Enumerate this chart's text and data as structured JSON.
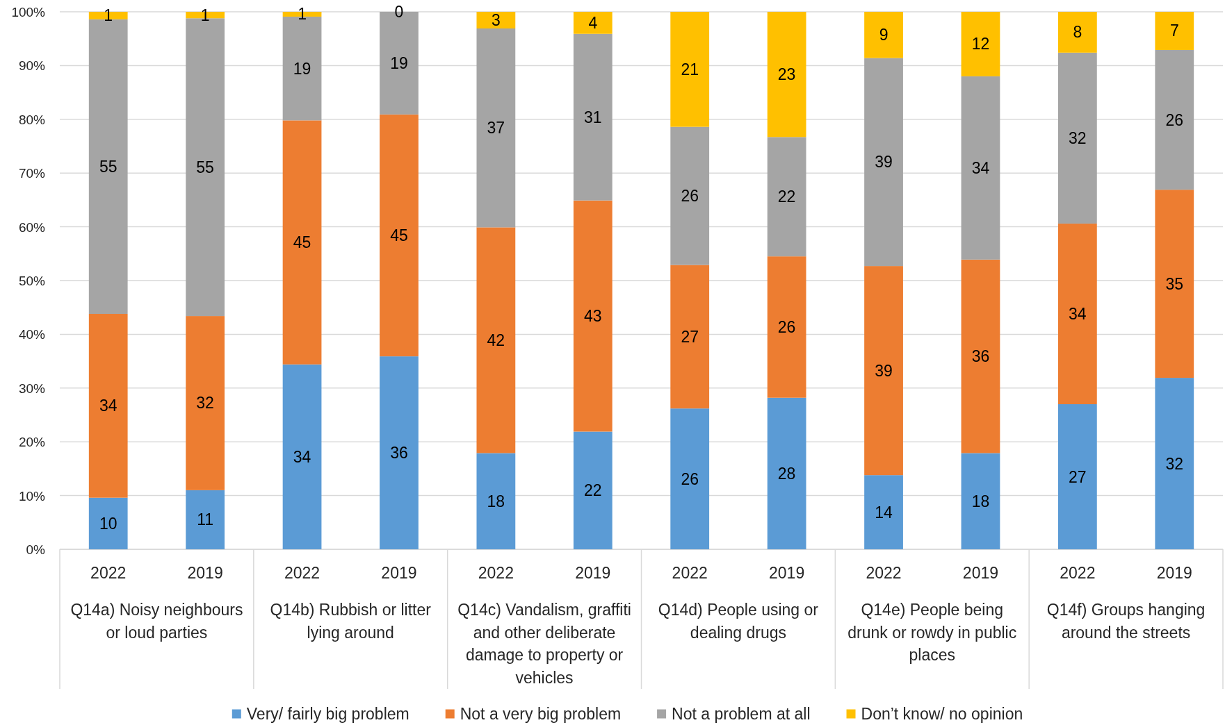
{
  "chart_data": {
    "type": "bar",
    "stacked": true,
    "categories": [
      "2022",
      "2019",
      "2022",
      "2019",
      "2022",
      "2019",
      "2022",
      "2019",
      "2022",
      "2019",
      "2022",
      "2019"
    ],
    "annotations": [
      "Q14a) Noisy neighbours or loud parties",
      "Q14b) Rubbish or litter lying around",
      "Q14c) Vandalism, graffiti and other deliberate damage to property or vehicles",
      "Q14d) People using or dealing drugs",
      "Q14e) People being drunk or rowdy in public places",
      "Q14f) Groups hanging around the streets"
    ],
    "series": [
      {
        "name": "Very/ fairly big problem",
        "color": "#5b9bd5",
        "values": [
          9.6,
          11.0,
          34.4,
          35.9,
          17.9,
          21.9,
          26.2,
          28.2,
          13.8,
          17.9,
          27.0,
          31.9
        ],
        "value_labels": [
          "10",
          "11",
          "34",
          "36",
          "18",
          "22",
          "26",
          "28",
          "14",
          "18",
          "27",
          "32"
        ]
      },
      {
        "name": "Not a very big problem",
        "color": "#ed7d31",
        "values": [
          34.2,
          32.4,
          45.4,
          45.0,
          42.0,
          43.0,
          26.7,
          26.3,
          38.9,
          36.0,
          33.6,
          35.0
        ],
        "value_labels": [
          "34",
          "32",
          "45",
          "45",
          "42",
          "43",
          "27",
          "26",
          "39",
          "36",
          "34",
          "35"
        ]
      },
      {
        "name": "Not a problem at all",
        "color": "#a5a5a5",
        "values": [
          54.8,
          55.4,
          19.3,
          19.1,
          37.0,
          31.0,
          25.7,
          22.2,
          38.7,
          34.1,
          31.8,
          26.0
        ],
        "value_labels": [
          "55",
          "55",
          "19",
          "19",
          "37",
          "31",
          "26",
          "22",
          "39",
          "34",
          "32",
          "26"
        ]
      },
      {
        "name": "Don’t know/ no opinion",
        "color": "#ffc000",
        "values": [
          1.4,
          1.2,
          0.9,
          0,
          3.1,
          4.1,
          21.4,
          23.3,
          8.6,
          12.0,
          7.6,
          7.1
        ],
        "value_labels": [
          "1",
          "1",
          "1",
          "0",
          "3",
          "4",
          "21",
          "23",
          "9",
          "12",
          "8",
          "7"
        ]
      }
    ],
    "ylim": [
      0,
      100
    ],
    "yticks": [
      {
        "value": 0,
        "label": "0%"
      },
      {
        "value": 10,
        "label": "10%"
      },
      {
        "value": 20,
        "label": "20%"
      },
      {
        "value": 30,
        "label": "30%"
      },
      {
        "value": 40,
        "label": "40%"
      },
      {
        "value": 50,
        "label": "50%"
      },
      {
        "value": 60,
        "label": "60%"
      },
      {
        "value": 70,
        "label": "70%"
      },
      {
        "value": 80,
        "label": "80%"
      },
      {
        "value": 90,
        "label": "90%"
      },
      {
        "value": 100,
        "label": "100%"
      }
    ],
    "grid": "y",
    "legend": "bottom"
  }
}
